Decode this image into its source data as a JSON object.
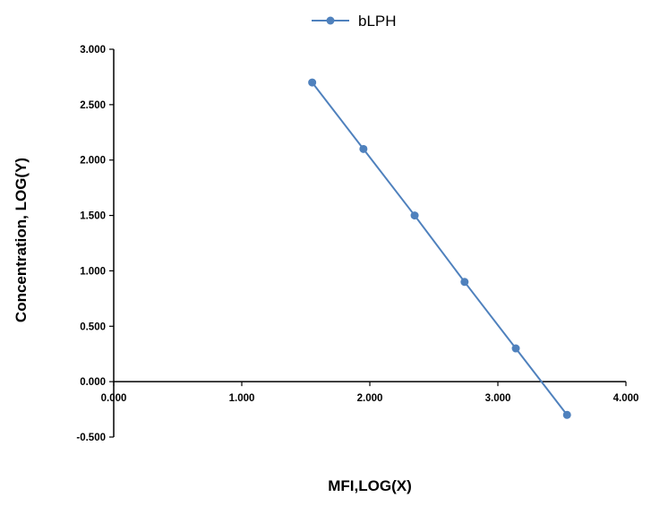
{
  "chart_data": {
    "type": "line",
    "series": [
      {
        "name": "bLPH",
        "color": "#4f81bd",
        "points": [
          {
            "x": 1.55,
            "y": 2.7
          },
          {
            "x": 1.95,
            "y": 2.1
          },
          {
            "x": 2.35,
            "y": 1.5
          },
          {
            "x": 2.74,
            "y": 0.9
          },
          {
            "x": 3.14,
            "y": 0.3
          },
          {
            "x": 3.54,
            "y": -0.3
          }
        ]
      }
    ],
    "xlabel": "MFI,LOG(X)",
    "ylabel": "Concentration,  LOG(Y)",
    "xlim": [
      0,
      4
    ],
    "ylim": [
      -0.5,
      3
    ],
    "x_ticks": [
      "0.000",
      "1.000",
      "2.000",
      "3.000",
      "4.000"
    ],
    "y_ticks": [
      "-0.500",
      "0.000",
      "0.500",
      "1.000",
      "1.500",
      "2.000",
      "2.500",
      "3.000"
    ],
    "legend_position": "top-center",
    "grid": false
  }
}
